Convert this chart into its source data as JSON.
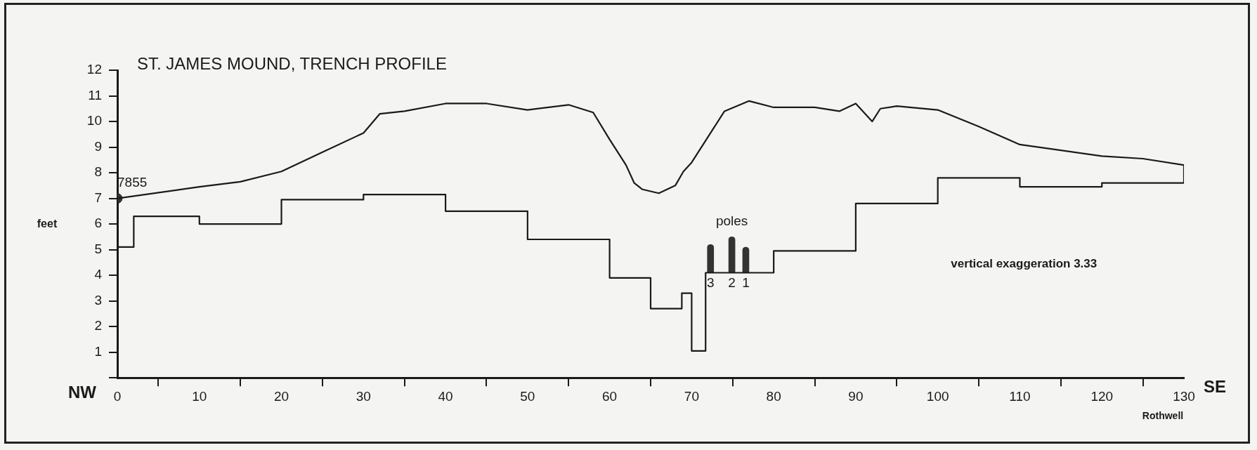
{
  "chart_data": {
    "type": "line",
    "title": "ST. JAMES MOUND, TRENCH PROFILE",
    "ylabel": "feet",
    "xlim": [
      0,
      130
    ],
    "xticks": [
      0,
      10,
      20,
      30,
      40,
      50,
      60,
      70,
      80,
      90,
      100,
      110,
      120,
      130
    ],
    "ylim": [
      0,
      12
    ],
    "yticks": [
      {
        "value": 0,
        "label": null
      },
      1,
      2,
      3,
      4,
      5,
      6,
      7,
      8,
      9,
      10,
      11,
      12
    ],
    "grid": false,
    "legend": false,
    "marker": "none",
    "line_style": "solid",
    "series": [
      {
        "color": "#1a1a1a",
        "x": [
          0,
          10,
          15,
          20,
          25,
          30,
          32,
          35,
          40,
          45,
          50,
          55,
          58,
          60,
          62,
          63,
          64,
          66,
          68,
          69,
          70,
          72,
          74,
          77,
          80,
          85,
          88,
          90,
          92,
          93,
          95,
          100,
          105,
          110,
          120,
          125,
          130
        ],
        "values": [
          7.0,
          7.45,
          7.65,
          8.05,
          8.8,
          9.55,
          10.3,
          10.4,
          10.7,
          10.7,
          10.45,
          10.65,
          10.35,
          9.3,
          8.3,
          7.6,
          7.35,
          7.2,
          7.5,
          8.05,
          8.4,
          9.4,
          10.4,
          10.8,
          10.55,
          10.55,
          10.4,
          10.7,
          10.0,
          10.5,
          10.6,
          10.45,
          9.8,
          9.1,
          8.65,
          8.55,
          8.3
        ]
      },
      {
        "color": "#1a1a1a",
        "x": [
          0,
          0,
          2,
          2,
          10,
          10,
          20,
          20,
          30,
          30,
          40,
          40,
          50,
          50,
          60,
          60,
          65,
          65,
          68.8,
          68.8,
          70,
          70,
          71.7,
          71.7,
          80,
          80,
          90,
          90,
          100,
          100,
          110,
          110,
          120,
          120,
          130,
          130
        ],
        "values": [
          7.0,
          5.1,
          5.1,
          6.3,
          6.3,
          6.0,
          6.0,
          6.95,
          6.95,
          7.15,
          7.15,
          6.5,
          6.5,
          5.4,
          5.4,
          3.9,
          3.9,
          2.7,
          2.7,
          3.3,
          3.3,
          1.05,
          1.05,
          4.1,
          4.1,
          4.95,
          4.95,
          6.8,
          6.8,
          7.8,
          7.8,
          7.45,
          7.45,
          7.6,
          7.6,
          8.3
        ]
      },
      {
        "type": "scatter",
        "color": "#333333",
        "marker": "circle",
        "x": [
          0
        ],
        "values": [
          7.0
        ]
      },
      {
        "type": "bar",
        "color": "#333333",
        "x": [
          72.3,
          74.9,
          76.6
        ],
        "base": [
          4.1,
          4.1,
          4.1
        ],
        "values": [
          1.1,
          1.4,
          1.0
        ]
      }
    ],
    "annotations": [
      {
        "text": "7855",
        "x": 0,
        "y": 7.0
      },
      {
        "text": "poles",
        "x": 74.9,
        "y": 5.5
      },
      {
        "text": "3",
        "x": 72.3,
        "y": 4.1
      },
      {
        "text": "2",
        "x": 74.9,
        "y": 4.1
      },
      {
        "text": "1",
        "x": 76.6,
        "y": 4.1
      },
      "NW",
      "SE",
      "vertical exaggeration 3.33",
      "Rothwell"
    ]
  }
}
